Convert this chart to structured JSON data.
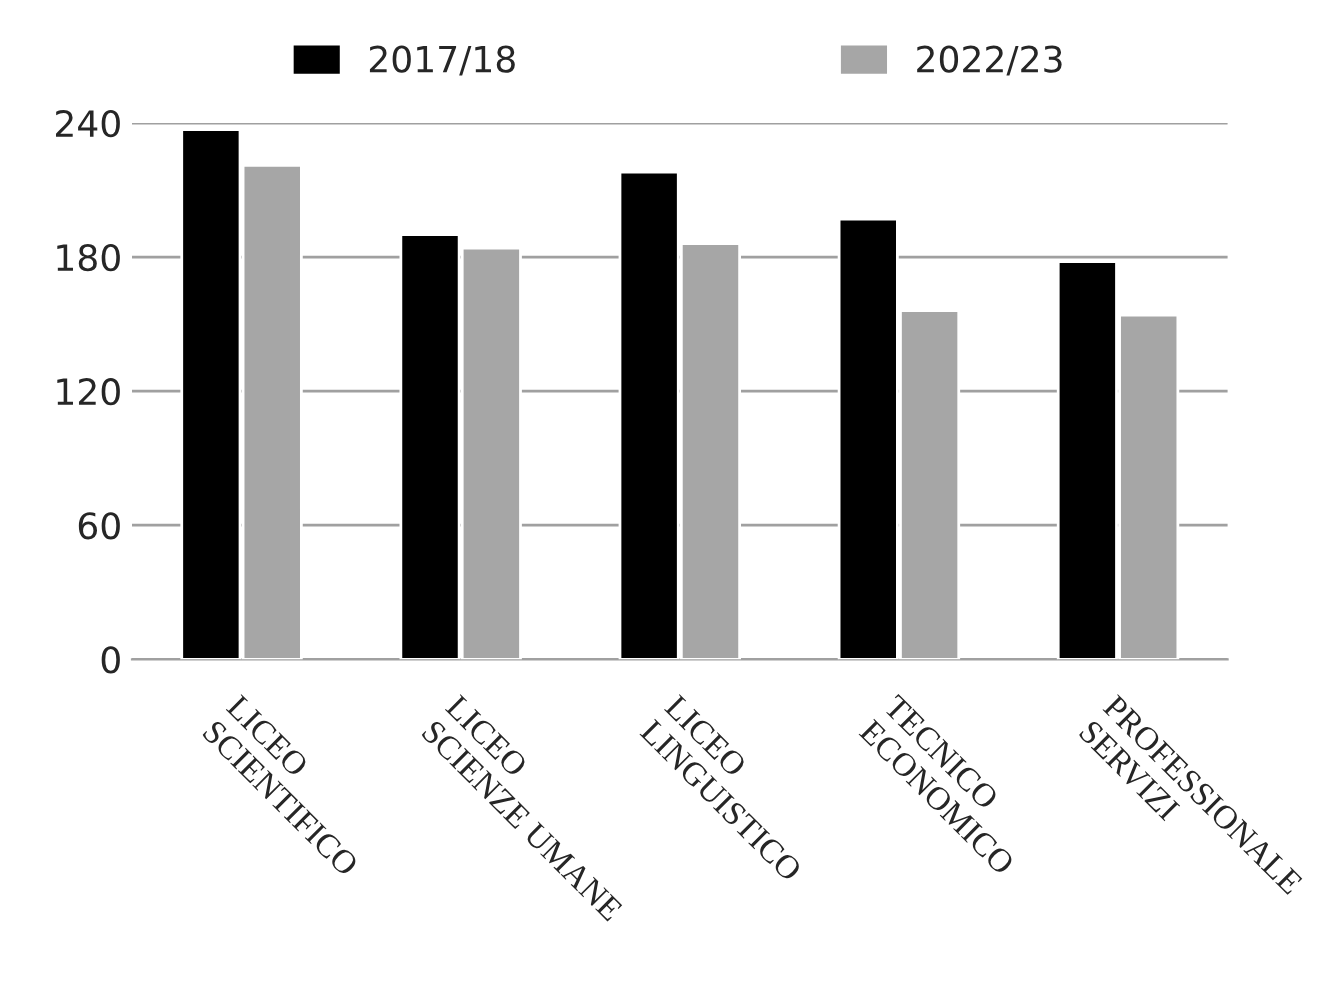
{
  "chart_data": {
    "type": "bar",
    "categories": [
      "LICEO\nSCIENTIFICO",
      "LICEO\nSCIENZE UMANE",
      "LICEO\nLINGUISTICO",
      "TECNICO\nECONOMICO",
      "PROFESSIONALE\nSERVIZI"
    ],
    "series": [
      {
        "name": "2017/18",
        "color": "#000000",
        "values": [
          237,
          190,
          218,
          197,
          178
        ]
      },
      {
        "name": "2022/23",
        "color": "#a6a6a6",
        "values": [
          221,
          184,
          186,
          156,
          154
        ]
      }
    ],
    "ylim": [
      0,
      240
    ],
    "yticks": [
      0,
      60,
      120,
      180,
      240
    ],
    "grid": "y",
    "legend": "top"
  }
}
